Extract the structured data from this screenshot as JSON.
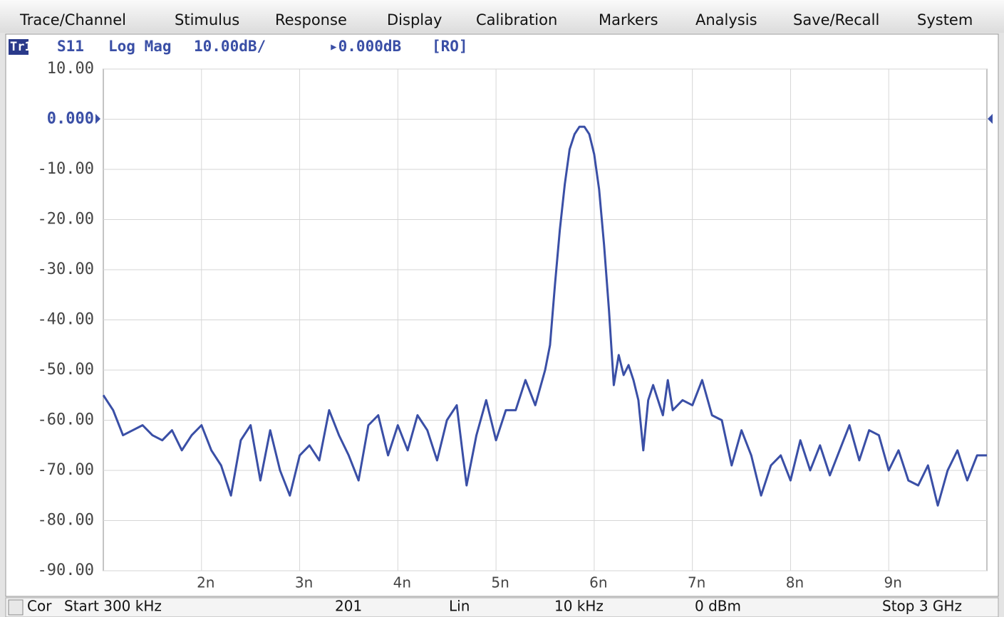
{
  "menu": [
    "Trace/Channel",
    "Stimulus",
    "Response",
    "Display",
    "Calibration",
    "Markers",
    "Analysis",
    "Save/Recall",
    "System"
  ],
  "trace_header": {
    "trace": "Tr1",
    "parameter": "S11",
    "format": "Log Mag",
    "scale": "10.00dB/",
    "reference": "▸0.000dB",
    "flag": "[RO]"
  },
  "chart_data": {
    "type": "line",
    "x": [
      1.0,
      1.1,
      1.2,
      1.3,
      1.4,
      1.5,
      1.6,
      1.7,
      1.8,
      1.9,
      2.0,
      2.1,
      2.2,
      2.3,
      2.4,
      2.5,
      2.6,
      2.7,
      2.8,
      2.9,
      3.0,
      3.1,
      3.2,
      3.3,
      3.4,
      3.5,
      3.6,
      3.7,
      3.8,
      3.9,
      4.0,
      4.1,
      4.2,
      4.3,
      4.4,
      4.5,
      4.6,
      4.7,
      4.8,
      4.9,
      5.0,
      5.1,
      5.2,
      5.3,
      5.4,
      5.5,
      5.55,
      5.6,
      5.65,
      5.7,
      5.75,
      5.8,
      5.85,
      5.9,
      5.95,
      6.0,
      6.05,
      6.1,
      6.15,
      6.2,
      6.25,
      6.3,
      6.35,
      6.4,
      6.45,
      6.5,
      6.55,
      6.6,
      6.7,
      6.75,
      6.8,
      6.9,
      7.0,
      7.1,
      7.2,
      7.3,
      7.4,
      7.5,
      7.6,
      7.7,
      7.8,
      7.9,
      8.0,
      8.1,
      8.2,
      8.3,
      8.4,
      8.5,
      8.6,
      8.7,
      8.8,
      8.9,
      9.0,
      9.1,
      9.2,
      9.3,
      9.4,
      9.5,
      9.6,
      9.7,
      9.8,
      9.9,
      10.0
    ],
    "series": [
      {
        "name": "S11",
        "color": "#3a4fa6",
        "values": [
          -55,
          -58,
          -63,
          -62,
          -61,
          -63,
          -64,
          -62,
          -66,
          -63,
          -61,
          -66,
          -69,
          -75,
          -64,
          -61,
          -72,
          -62,
          -70,
          -75,
          -67,
          -65,
          -68,
          -58,
          -63,
          -67,
          -72,
          -61,
          -59,
          -67,
          -61,
          -66,
          -59,
          -62,
          -68,
          -60,
          -57,
          -73,
          -63,
          -56,
          -64,
          -58,
          -58,
          -52,
          -57,
          -50,
          -45,
          -33,
          -22,
          -13,
          -6,
          -3,
          -1.5,
          -1.5,
          -3,
          -7,
          -14,
          -25,
          -38,
          -53,
          -47,
          -51,
          -49,
          -52,
          -56,
          -66,
          -56,
          -53,
          -59,
          -52,
          -58,
          -56,
          -57,
          -52,
          -59,
          -60,
          -69,
          -62,
          -67,
          -75,
          -69,
          -67,
          -72,
          -64,
          -70,
          -65,
          -71,
          -66,
          -61,
          -68,
          -62,
          -63,
          -70,
          -66,
          -72,
          -73,
          -69,
          -77,
          -70,
          -66,
          -72,
          -67,
          -67
        ]
      }
    ],
    "xlim": [
      1,
      10
    ],
    "xticks": [
      {
        "value": 2,
        "label": "2n"
      },
      {
        "value": 3,
        "label": "3n"
      },
      {
        "value": 4,
        "label": "4n"
      },
      {
        "value": 5,
        "label": "5n"
      },
      {
        "value": 6,
        "label": "6n"
      },
      {
        "value": 7,
        "label": "7n"
      },
      {
        "value": 8,
        "label": "8n"
      },
      {
        "value": 9,
        "label": "9n"
      }
    ],
    "ylim": [
      -90,
      10
    ],
    "yticks": [
      {
        "value": 10,
        "label": "10.00"
      },
      {
        "value": 0,
        "label": "0.000"
      },
      {
        "value": -10,
        "label": "-10.00"
      },
      {
        "value": -20,
        "label": "-20.00"
      },
      {
        "value": -30,
        "label": "-30.00"
      },
      {
        "value": -40,
        "label": "-40.00"
      },
      {
        "value": -50,
        "label": "-50.00"
      },
      {
        "value": -60,
        "label": "-60.00"
      },
      {
        "value": -70,
        "label": "-70.00"
      },
      {
        "value": -80,
        "label": "-80.00"
      },
      {
        "value": -90,
        "label": "-90.00"
      }
    ],
    "grid": true
  },
  "status_bar": [
    "Cor",
    "Start 300 kHz",
    "201",
    "Lin",
    "10 kHz",
    "0 dBm",
    "Stop 3 GHz"
  ]
}
